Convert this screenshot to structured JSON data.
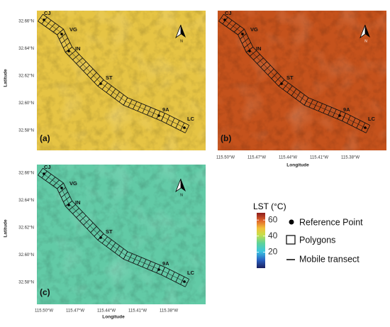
{
  "panels": [
    "(a)",
    "(b)",
    "(c)"
  ],
  "reference_points": [
    "CJ",
    "VG",
    "IN",
    "ST",
    "9A",
    "LC"
  ],
  "north": "N",
  "axes": {
    "latitude_title": "Latitude",
    "longitude_title": "Longitude",
    "latitude_ticks": [
      "32.66°N",
      "32.64°N",
      "32.62°N",
      "32.60°N",
      "32.58°N"
    ],
    "longitude_ticks": [
      "115.50°W",
      "115.47°W",
      "115.44°W",
      "115.41°W",
      "115.38°W"
    ]
  },
  "colorbar": {
    "title": "LST (°C)",
    "ticks": [
      60,
      40,
      20
    ],
    "lim": [
      0,
      69
    ]
  },
  "legend": [
    "Reference Point",
    "Polygons",
    "Mobile transect"
  ]
}
